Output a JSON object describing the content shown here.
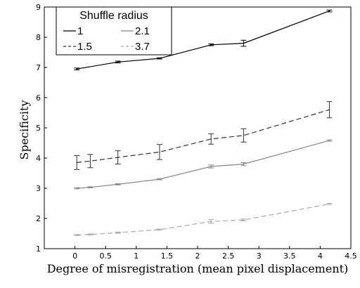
{
  "chart_data": {
    "type": "line",
    "xlabel": "Degree of misregistration (mean pixel displacement)",
    "ylabel": "Specificity",
    "xlim": [
      -0.5,
      4.5
    ],
    "ylim": [
      1,
      9
    ],
    "x_ticks": [
      "0",
      "0.5",
      "1",
      "1.5",
      "2",
      "2.5",
      "3",
      "3.5",
      "4",
      "4.5"
    ],
    "y_ticks": [
      "1",
      "2",
      "3",
      "4",
      "5",
      "6",
      "7",
      "8",
      "9"
    ],
    "grid": false,
    "legend": {
      "title": "Shuffle radius",
      "placement": "top-left",
      "entries": [
        "1",
        "1.5",
        "2.1",
        "3.7"
      ]
    },
    "series": [
      {
        "name": "1",
        "color": "#000000",
        "dash": "solid",
        "x": [
          0.03,
          0.7,
          1.38,
          2.22,
          2.75,
          4.15
        ],
        "y": [
          6.95,
          7.18,
          7.3,
          7.75,
          7.8,
          8.87
        ],
        "err": [
          0.03,
          0.03,
          0.02,
          0.03,
          0.1,
          0.03
        ]
      },
      {
        "name": "1.5",
        "color": "#333333",
        "dash": "dashed",
        "x": [
          0.03,
          0.25,
          0.7,
          1.38,
          2.22,
          2.75,
          4.15
        ],
        "y": [
          3.85,
          3.9,
          4.02,
          4.2,
          4.63,
          4.75,
          5.6
        ],
        "err": [
          0.23,
          0.22,
          0.22,
          0.25,
          0.17,
          0.22,
          0.27
        ]
      },
      {
        "name": "2.1",
        "color": "#888888",
        "dash": "solid",
        "x": [
          0.03,
          0.25,
          0.7,
          1.38,
          2.22,
          2.75,
          4.15
        ],
        "y": [
          3.0,
          3.03,
          3.13,
          3.3,
          3.72,
          3.8,
          4.58
        ],
        "err": [
          0.02,
          0.02,
          0.02,
          0.02,
          0.05,
          0.05,
          0.02
        ]
      },
      {
        "name": "3.7",
        "color": "#aaaaaa",
        "dash": "dashed",
        "x": [
          0.03,
          0.25,
          0.7,
          1.38,
          2.22,
          2.75,
          4.15
        ],
        "y": [
          1.45,
          1.47,
          1.53,
          1.63,
          1.9,
          1.95,
          2.48
        ],
        "err": [
          0.02,
          0.02,
          0.02,
          0.02,
          0.06,
          0.03,
          0.02
        ]
      }
    ]
  }
}
